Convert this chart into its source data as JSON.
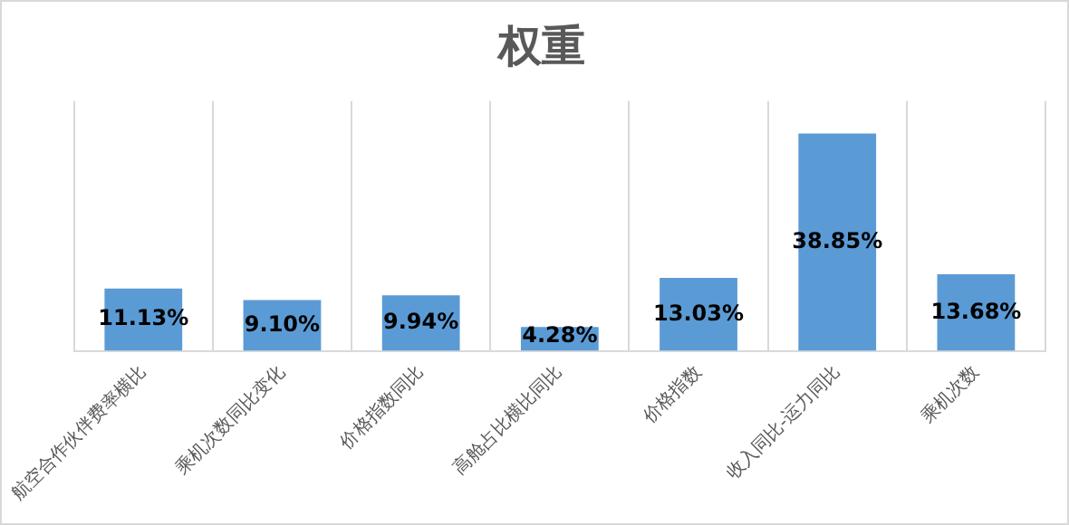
{
  "chart_data": {
    "type": "bar",
    "title": "权重",
    "categories": [
      "航空合作伙伴费率横比",
      "乘机次数同比变化",
      "价格指数同比",
      "高舱占比横比同比",
      "价格指数",
      "收入同比-运力同比",
      "乘机次数"
    ],
    "values": [
      11.13,
      9.1,
      9.94,
      4.28,
      13.03,
      38.85,
      13.68
    ],
    "value_labels": [
      "11.13%",
      "9.10%",
      "9.94%",
      "4.28%",
      "13.03%",
      "38.85%",
      "13.68%"
    ],
    "color": "#5b9bd5",
    "grid": "x",
    "legend": false
  }
}
